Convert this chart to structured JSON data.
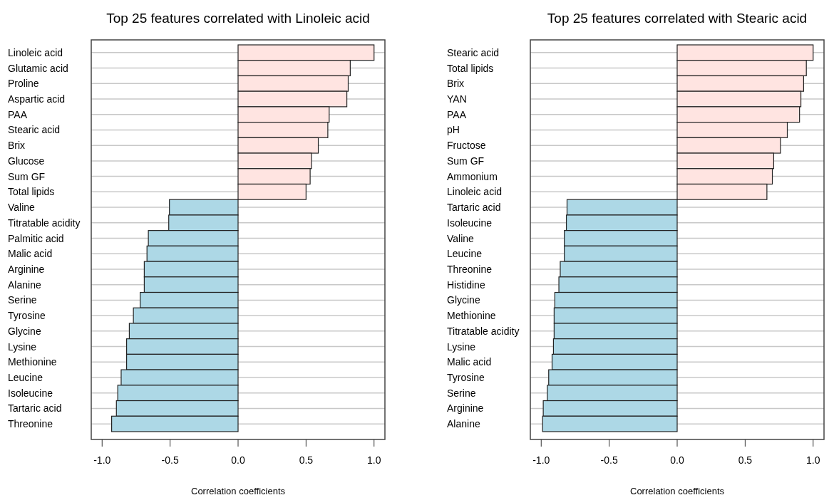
{
  "chart_data": [
    {
      "type": "bar",
      "orientation": "horizontal",
      "title": "Top 25 features correlated with Linoleic acid",
      "xlabel": "Correlation coefficients",
      "grid": "y",
      "categories": [
        "Linoleic acid",
        "Glutamic acid",
        "Proline",
        "Aspartic acid",
        "PAA",
        "Stearic acid",
        "Brix",
        "Glucose",
        "Sum GF",
        "Total lipids",
        "Valine",
        "Titratable acidity",
        "Palmitic acid",
        "Malic acid",
        "Arginine",
        "Alanine",
        "Serine",
        "Tyrosine",
        "Glycine",
        "Lysine",
        "Methionine",
        "Leucine",
        "Isoleucine",
        "Tartaric acid",
        "Threonine"
      ],
      "values": [
        1.0,
        0.825,
        0.81,
        0.8,
        0.67,
        0.66,
        0.59,
        0.54,
        0.53,
        0.5,
        -0.505,
        -0.51,
        -0.66,
        -0.67,
        -0.69,
        -0.69,
        -0.72,
        -0.77,
        -0.8,
        -0.82,
        -0.82,
        -0.86,
        -0.885,
        -0.895,
        -0.93
      ],
      "colors": [
        "#ffe4e1",
        "#ffe4e1",
        "#ffe4e1",
        "#ffe4e1",
        "#ffe4e1",
        "#ffe4e1",
        "#ffe4e1",
        "#ffe4e1",
        "#ffe4e1",
        "#ffe4e1",
        "#add8e6",
        "#add8e6",
        "#add8e6",
        "#add8e6",
        "#add8e6",
        "#add8e6",
        "#add8e6",
        "#add8e6",
        "#add8e6",
        "#add8e6",
        "#add8e6",
        "#add8e6",
        "#add8e6",
        "#add8e6",
        "#add8e6"
      ],
      "xlim": [
        -1.08,
        1.08
      ],
      "xticks": [
        {
          "value": -1,
          "label": "-1.0"
        },
        {
          "value": -0.5,
          "label": "-0.5"
        },
        {
          "value": 0,
          "label": "0.0"
        },
        {
          "value": 0.5,
          "label": "0.5"
        },
        {
          "value": 1,
          "label": "1.0"
        }
      ]
    },
    {
      "type": "bar",
      "orientation": "horizontal",
      "title": "Top 25 features correlated with Stearic acid",
      "xlabel": "Correlation coefficients",
      "grid": "y",
      "categories": [
        "Stearic acid",
        "Total lipids",
        "Brix",
        "YAN",
        "PAA",
        "pH",
        "Fructose",
        "Sum GF",
        "Ammonium",
        "Linoleic acid",
        "Tartaric acid",
        "Isoleucine",
        "Valine",
        "Leucine",
        "Threonine",
        "Histidine",
        "Glycine",
        "Methionine",
        "Titratable acidity",
        "Lysine",
        "Malic acid",
        "Tyrosine",
        "Serine",
        "Arginine",
        "Alanine"
      ],
      "values": [
        1.0,
        0.95,
        0.93,
        0.91,
        0.9,
        0.81,
        0.76,
        0.71,
        0.7,
        0.66,
        -0.81,
        -0.815,
        -0.83,
        -0.83,
        -0.86,
        -0.87,
        -0.9,
        -0.905,
        -0.905,
        -0.91,
        -0.92,
        -0.945,
        -0.955,
        -0.985,
        -0.99
      ],
      "colors": [
        "#ffe4e1",
        "#ffe4e1",
        "#ffe4e1",
        "#ffe4e1",
        "#ffe4e1",
        "#ffe4e1",
        "#ffe4e1",
        "#ffe4e1",
        "#ffe4e1",
        "#ffe4e1",
        "#add8e6",
        "#add8e6",
        "#add8e6",
        "#add8e6",
        "#add8e6",
        "#add8e6",
        "#add8e6",
        "#add8e6",
        "#add8e6",
        "#add8e6",
        "#add8e6",
        "#add8e6",
        "#add8e6",
        "#add8e6",
        "#add8e6"
      ],
      "xlim": [
        -1.08,
        1.08
      ],
      "xticks": [
        {
          "value": -1,
          "label": "-1.0"
        },
        {
          "value": -0.5,
          "label": "-0.5"
        },
        {
          "value": 0,
          "label": "0.0"
        },
        {
          "value": 0.5,
          "label": "0.5"
        },
        {
          "value": 1,
          "label": "1.0"
        }
      ]
    }
  ]
}
